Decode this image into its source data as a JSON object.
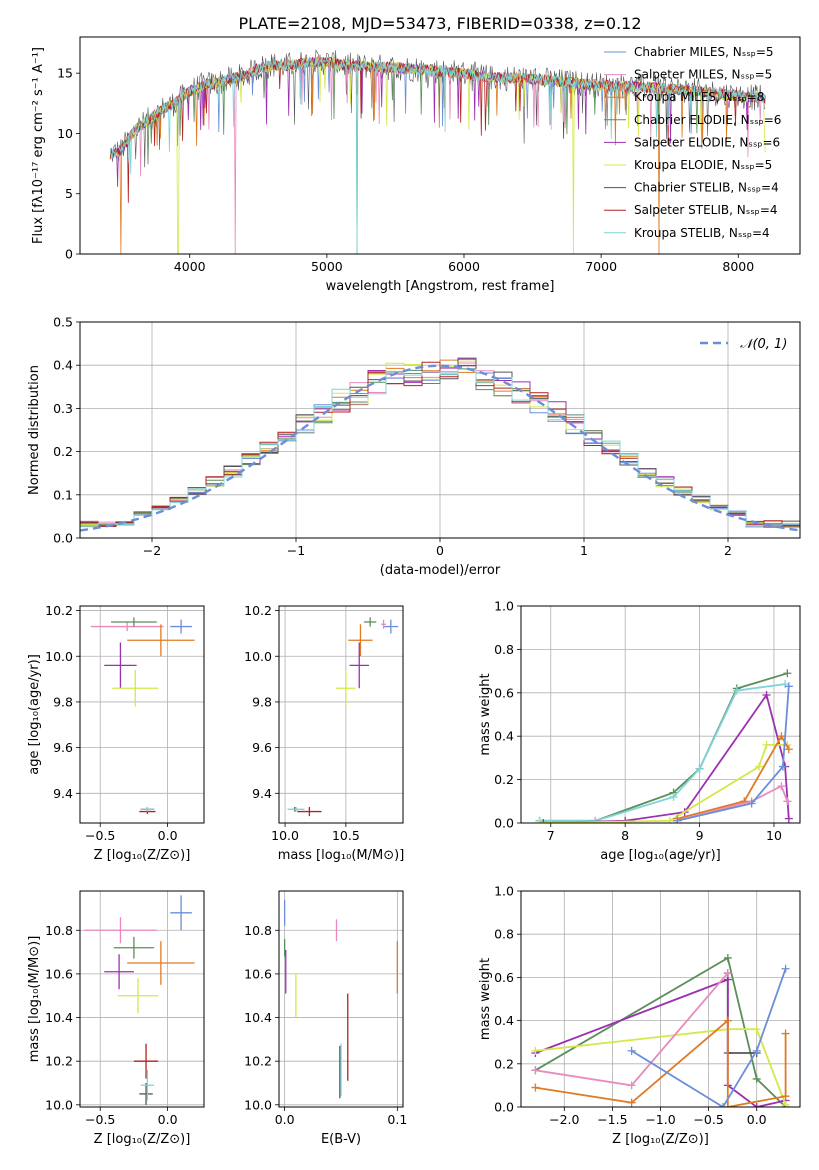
{
  "title": "PLATE=2108, MJD=53473, FIBERID=0338, z=0.12",
  "chart_data": [
    {
      "id": "spectrum",
      "type": "line",
      "xlabel": "wavelength [Angstrom, rest frame]",
      "ylabel": "Flux [fλ10⁻¹⁷ erg cm⁻² s⁻¹ A⁻¹]",
      "xlim": [
        3200,
        8450
      ],
      "ylim": [
        0,
        18
      ],
      "xticks": [
        4000,
        5000,
        6000,
        7000,
        8000
      ],
      "yticks": [
        0,
        5,
        10,
        15
      ],
      "grid": false,
      "legend_position": "top-right",
      "legend": [
        {
          "label": "Chabrier MILES, Nₛₛₚ=5",
          "color": "#6a8fd8"
        },
        {
          "label": "Salpeter MILES, Nₛₛₚ=5",
          "color": "#e88ac0"
        },
        {
          "label": "Kroupa MILES, Nₛₛₚ=8",
          "color": "#e07b23"
        },
        {
          "label": "Chabrier ELODIE, Nₛₛₚ=6",
          "color": "#5a8f5a"
        },
        {
          "label": "Salpeter ELODIE, Nₛₛₚ=6",
          "color": "#9b30b0"
        },
        {
          "label": "Kroupa ELODIE, Nₛₛₚ=5",
          "color": "#d4e84a"
        },
        {
          "label": "Chabrier STELIB, Nₛₛₚ=4",
          "color": "#555555"
        },
        {
          "label": "Salpeter STELIB, Nₛₛₚ=4",
          "color": "#b22222"
        },
        {
          "label": "Kroupa STELIB, Nₛₛₚ=4",
          "color": "#7fd4d8"
        }
      ],
      "continuum": {
        "x": [
          3420,
          3500,
          3600,
          3700,
          3800,
          3900,
          4000,
          4100,
          4200,
          4300,
          4400,
          4500,
          4600,
          4700,
          4800,
          4900,
          5000,
          5200,
          5400,
          5600,
          5800,
          6000,
          6200,
          6400,
          6600,
          6800,
          7000,
          7200,
          7400,
          7600,
          7800,
          8000,
          8200
        ],
        "y": [
          8.3,
          8.6,
          10.3,
          11.1,
          12.0,
          12.6,
          13.5,
          14.0,
          14.2,
          14.5,
          14.8,
          15.4,
          15.7,
          15.6,
          15.8,
          15.9,
          15.9,
          15.6,
          15.5,
          15.4,
          15.2,
          15.0,
          14.6,
          14.6,
          14.4,
          14.2,
          14.0,
          13.9,
          13.8,
          13.6,
          13.4,
          13.1,
          12.9
        ]
      }
    },
    {
      "id": "residuals",
      "type": "line",
      "xlabel": "(data-model)/error",
      "ylabel": "Normed distribution",
      "xlim": [
        -2.5,
        2.5
      ],
      "ylim": [
        0,
        0.5
      ],
      "xticks": [
        -2,
        -1,
        0,
        1,
        2
      ],
      "yticks": [
        0.0,
        0.1,
        0.2,
        0.3,
        0.4,
        0.5
      ],
      "grid": true,
      "legend_position": "top-right",
      "legend": [
        {
          "label": "𝒩(0, 1)",
          "color": "#6a8fd8",
          "style": "dashed"
        }
      ],
      "bin_width": 0.125
    },
    {
      "id": "age-vs-z",
      "type": "scatter",
      "xlabel": "Z [log₁₀(Z/Z⊙)]",
      "ylabel": "age  [log₁₀(age/yr)]",
      "xlim": [
        -0.65,
        0.27
      ],
      "ylim": [
        9.27,
        10.22
      ],
      "xticks": [
        -0.5,
        0.0
      ],
      "yticks": [
        9.4,
        9.6,
        9.8,
        10.0,
        10.2
      ],
      "grid": true,
      "points": [
        {
          "color": "#6a8fd8",
          "x": 0.1,
          "xerr": 0.08,
          "y": 10.13,
          "yerr": 0.03
        },
        {
          "color": "#e88ac0",
          "x": -0.3,
          "xerr": 0.27,
          "y": 10.13,
          "yerr": 0.02
        },
        {
          "color": "#e07b23",
          "x": -0.05,
          "xerr": 0.25,
          "y": 10.07,
          "yerr": 0.07
        },
        {
          "color": "#5a8f5a",
          "x": -0.25,
          "xerr": 0.17,
          "y": 10.15,
          "yerr": 0.02
        },
        {
          "color": "#9b30b0",
          "x": -0.35,
          "xerr": 0.12,
          "y": 9.96,
          "yerr": 0.1
        },
        {
          "color": "#d4e84a",
          "x": -0.24,
          "xerr": 0.17,
          "y": 9.86,
          "yerr": 0.08
        },
        {
          "color": "#555555",
          "x": -0.15,
          "xerr": 0.05,
          "y": 9.33,
          "yerr": 0.01
        },
        {
          "color": "#b22222",
          "x": -0.15,
          "xerr": 0.06,
          "y": 9.32,
          "yerr": 0.01
        },
        {
          "color": "#7fd4d8",
          "x": -0.15,
          "xerr": 0.05,
          "y": 9.33,
          "yerr": 0.01
        }
      ]
    },
    {
      "id": "age-vs-mass",
      "type": "scatter",
      "xlabel": "mass [log₁₀(M/M⊙)]",
      "ylabel": "",
      "xlim": [
        9.95,
        10.97
      ],
      "ylim": [
        9.27,
        10.22
      ],
      "xticks": [
        10.0,
        10.5
      ],
      "yticks": [
        9.4,
        9.6,
        9.8,
        10.0,
        10.2
      ],
      "grid": true,
      "points": [
        {
          "color": "#6a8fd8",
          "x": 10.87,
          "xerr": 0.06,
          "y": 10.13,
          "yerr": 0.03
        },
        {
          "color": "#e88ac0",
          "x": 10.81,
          "xerr": 0.02,
          "y": 10.14,
          "yerr": 0.02
        },
        {
          "color": "#e07b23",
          "x": 10.62,
          "xerr": 0.1,
          "y": 10.07,
          "yerr": 0.07
        },
        {
          "color": "#5a8f5a",
          "x": 10.7,
          "xerr": 0.05,
          "y": 10.15,
          "yerr": 0.02
        },
        {
          "color": "#9b30b0",
          "x": 10.61,
          "xerr": 0.08,
          "y": 9.96,
          "yerr": 0.1
        },
        {
          "color": "#d4e84a",
          "x": 10.5,
          "xerr": 0.08,
          "y": 9.86,
          "yerr": 0.08
        },
        {
          "color": "#555555",
          "x": 10.08,
          "xerr": 0.02,
          "y": 9.33,
          "yerr": 0.01
        },
        {
          "color": "#b22222",
          "x": 10.2,
          "xerr": 0.1,
          "y": 9.32,
          "yerr": 0.02
        },
        {
          "color": "#7fd4d8",
          "x": 10.09,
          "xerr": 0.07,
          "y": 9.33,
          "yerr": 0.01
        }
      ]
    },
    {
      "id": "mass-weight-vs-age",
      "type": "line",
      "xlabel": "age  [log₁₀(age/yr)]",
      "ylabel": "mass weight",
      "xlim": [
        6.6,
        10.35
      ],
      "ylim": [
        0,
        1
      ],
      "xticks": [
        7,
        8,
        9,
        10
      ],
      "yticks": [
        0.0,
        0.2,
        0.4,
        0.6,
        0.8,
        1.0
      ],
      "grid": true,
      "series": [
        {
          "color": "#5a8f5a",
          "x": [
            6.85,
            7.6,
            8.65,
            9.0,
            9.5,
            10.18
          ],
          "y": [
            0.01,
            0.01,
            0.14,
            0.25,
            0.62,
            0.69
          ]
        },
        {
          "color": "#7fd4d8",
          "x": [
            6.85,
            7.6,
            8.65,
            9.0,
            9.5,
            10.15
          ],
          "y": [
            0.01,
            0.01,
            0.12,
            0.25,
            0.61,
            0.64
          ]
        },
        {
          "color": "#9b30b0",
          "x": [
            6.9,
            8.0,
            8.8,
            9.9,
            10.15,
            10.2
          ],
          "y": [
            0.0,
            0.01,
            0.05,
            0.59,
            0.26,
            0.02
          ]
        },
        {
          "color": "#d4e84a",
          "x": [
            6.85,
            8.6,
            9.8,
            9.9,
            10.18
          ],
          "y": [
            0.0,
            0.01,
            0.26,
            0.36,
            0.36
          ]
        },
        {
          "color": "#e07b23",
          "x": [
            8.7,
            9.6,
            10.1,
            10.2
          ],
          "y": [
            0.02,
            0.1,
            0.4,
            0.34
          ]
        },
        {
          "color": "#e88ac0",
          "x": [
            8.7,
            9.7,
            10.1,
            10.18
          ],
          "y": [
            0.01,
            0.1,
            0.17,
            0.1
          ]
        },
        {
          "color": "#6a8fd8",
          "x": [
            8.7,
            9.7,
            10.12,
            10.2
          ],
          "y": [
            0.01,
            0.09,
            0.26,
            0.63
          ]
        }
      ]
    },
    {
      "id": "mass-vs-z",
      "type": "scatter",
      "xlabel": "Z [log₁₀(Z/Z⊙)]",
      "ylabel": "mass [log₁₀(M/M⊙)]",
      "xlim": [
        -0.65,
        0.27
      ],
      "ylim": [
        9.99,
        10.98
      ],
      "xticks": [
        -0.5,
        0.0
      ],
      "yticks": [
        10.0,
        10.2,
        10.4,
        10.6,
        10.8
      ],
      "grid": true,
      "points": [
        {
          "color": "#6a8fd8",
          "x": 0.1,
          "xerr": 0.08,
          "y": 10.88,
          "yerr": 0.08
        },
        {
          "color": "#e88ac0",
          "x": -0.35,
          "xerr": 0.27,
          "y": 10.8,
          "yerr": 0.06
        },
        {
          "color": "#e07b23",
          "x": -0.05,
          "xerr": 0.25,
          "y": 10.65,
          "yerr": 0.1
        },
        {
          "color": "#5a8f5a",
          "x": -0.25,
          "xerr": 0.15,
          "y": 10.72,
          "yerr": 0.05
        },
        {
          "color": "#9b30b0",
          "x": -0.36,
          "xerr": 0.11,
          "y": 10.61,
          "yerr": 0.08
        },
        {
          "color": "#d4e84a",
          "x": -0.22,
          "xerr": 0.15,
          "y": 10.5,
          "yerr": 0.08
        },
        {
          "color": "#555555",
          "x": -0.16,
          "xerr": 0.05,
          "y": 10.05,
          "yerr": 0.05
        },
        {
          "color": "#b22222",
          "x": -0.16,
          "xerr": 0.09,
          "y": 10.2,
          "yerr": 0.08
        },
        {
          "color": "#7fd4d8",
          "x": -0.15,
          "xerr": 0.05,
          "y": 10.09,
          "yerr": 0.07
        }
      ]
    },
    {
      "id": "mass-vs-ebv",
      "type": "scatter",
      "xlabel": "E(B-V)",
      "ylabel": "",
      "xlim": [
        -0.005,
        0.105
      ],
      "ylim": [
        9.99,
        10.98
      ],
      "xticks": [
        0.0,
        0.1
      ],
      "yticks": [
        10.0,
        10.2,
        10.4,
        10.6,
        10.8
      ],
      "grid": true,
      "points": [
        {
          "color": "#6a8fd8",
          "x": 0.0,
          "xerr": 0,
          "y": 10.88,
          "yerr": 0.06
        },
        {
          "color": "#e88ac0",
          "x": 0.046,
          "xerr": 0,
          "y": 10.8,
          "yerr": 0.05
        },
        {
          "color": "#e07b23",
          "x": 0.1,
          "xerr": 0,
          "y": 10.63,
          "yerr": 0.12
        },
        {
          "color": "#5a8f5a",
          "x": 0.0,
          "xerr": 0,
          "y": 10.72,
          "yerr": 0.04
        },
        {
          "color": "#9b30b0",
          "x": 0.001,
          "xerr": 0,
          "y": 10.61,
          "yerr": 0.1
        },
        {
          "color": "#d4e84a",
          "x": 0.01,
          "xerr": 0,
          "y": 10.5,
          "yerr": 0.1
        },
        {
          "color": "#555555",
          "x": 0.049,
          "xerr": 0,
          "y": 10.15,
          "yerr": 0.12
        },
        {
          "color": "#b22222",
          "x": 0.056,
          "xerr": 0,
          "y": 10.31,
          "yerr": 0.2
        },
        {
          "color": "#7fd4d8",
          "x": 0.05,
          "xerr": 0,
          "y": 10.16,
          "yerr": 0.12
        }
      ]
    },
    {
      "id": "mass-weight-vs-z",
      "type": "line",
      "xlabel": "Z [log₁₀(Z/Z⊙)]",
      "ylabel": "mass weight",
      "xlim": [
        -2.45,
        0.45
      ],
      "ylim": [
        0,
        1
      ],
      "xticks": [
        -2.0,
        -1.5,
        -1.0,
        -0.5,
        0.0
      ],
      "yticks": [
        0.0,
        0.2,
        0.4,
        0.6,
        0.8,
        1.0
      ],
      "grid": true,
      "series": [
        {
          "color": "#5a8f5a",
          "x": [
            -2.3,
            -0.3,
            0.0,
            0.3
          ],
          "y": [
            0.17,
            0.69,
            0.13,
            0.0
          ]
        },
        {
          "color": "#555555",
          "x": [
            -0.3,
            -0.3,
            0.0
          ],
          "y": [
            0.62,
            0.25,
            0.25
          ]
        },
        {
          "color": "#9b30b0",
          "x": [
            -2.3,
            -0.3,
            -0.3,
            0.0,
            0.3
          ],
          "y": [
            0.25,
            0.59,
            0.1,
            0.0,
            0.03
          ]
        },
        {
          "color": "#d4e84a",
          "x": [
            -2.3,
            -0.3,
            0.0,
            0.3
          ],
          "y": [
            0.26,
            0.36,
            0.36,
            0.01
          ]
        },
        {
          "color": "#e07b23",
          "x": [
            -2.3,
            -1.3,
            -0.3,
            -0.3,
            0.3,
            0.3
          ],
          "y": [
            0.09,
            0.02,
            0.4,
            0.0,
            0.05,
            0.34
          ]
        },
        {
          "color": "#e88ac0",
          "x": [
            -2.3,
            -1.3,
            -0.3
          ],
          "y": [
            0.17,
            0.1,
            0.62
          ]
        },
        {
          "color": "#6a8fd8",
          "x": [
            -1.3,
            -0.35,
            0.0,
            0.3
          ],
          "y": [
            0.26,
            0.0,
            0.26,
            0.64
          ]
        }
      ]
    }
  ]
}
